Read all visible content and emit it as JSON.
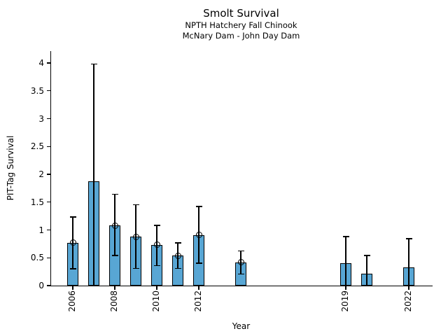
{
  "header": {
    "title": "Smolt Survival",
    "subtitle1": "NPTH Hatchery Fall Chinook",
    "subtitle2": "McNary Dam - John Day Dam"
  },
  "chart_data": {
    "type": "bar",
    "title": "Smolt Survival",
    "subtitles": [
      "NPTH Hatchery Fall Chinook",
      "McNary Dam - John Day Dam"
    ],
    "xlabel": "Year",
    "ylabel": "PIT-Tag Survival",
    "ylim": [
      0,
      4.2
    ],
    "xlim": [
      2004.9,
      2023.2
    ],
    "yticks": [
      0,
      0.5,
      1,
      1.5,
      2,
      2.5,
      3,
      3.5,
      4
    ],
    "xticks_shown": [
      2006,
      2008,
      2010,
      2012,
      2019,
      2022
    ],
    "grid": false,
    "legend": "none",
    "bar_color": "#58a6d4",
    "bar_edge_color": "#000000",
    "error_color": "#000000",
    "marker_style": "open-circle",
    "series": [
      {
        "year": 2006,
        "value": 0.77,
        "ci_low": 0.3,
        "ci_high": 1.23,
        "marker": true,
        "lower_cap": true
      },
      {
        "year": 2007,
        "value": 1.88,
        "ci_low": 0.0,
        "ci_high": 3.98,
        "marker": false,
        "lower_cap": false
      },
      {
        "year": 2008,
        "value": 1.08,
        "ci_low": 0.54,
        "ci_high": 1.64,
        "marker": true,
        "lower_cap": true
      },
      {
        "year": 2009,
        "value": 0.88,
        "ci_low": 0.31,
        "ci_high": 1.45,
        "marker": true,
        "lower_cap": true
      },
      {
        "year": 2010,
        "value": 0.73,
        "ci_low": 0.36,
        "ci_high": 1.08,
        "marker": true,
        "lower_cap": true
      },
      {
        "year": 2011,
        "value": 0.54,
        "ci_low": 0.31,
        "ci_high": 0.77,
        "marker": true,
        "lower_cap": true
      },
      {
        "year": 2012,
        "value": 0.91,
        "ci_low": 0.4,
        "ci_high": 1.42,
        "marker": true,
        "lower_cap": true
      },
      {
        "year": 2014,
        "value": 0.42,
        "ci_low": 0.21,
        "ci_high": 0.62,
        "marker": true,
        "lower_cap": true
      },
      {
        "year": 2019,
        "value": 0.4,
        "ci_low": 0.0,
        "ci_high": 0.88,
        "marker": false,
        "lower_cap": false
      },
      {
        "year": 2020,
        "value": 0.21,
        "ci_low": 0.0,
        "ci_high": 0.54,
        "marker": false,
        "lower_cap": false
      },
      {
        "year": 2022,
        "value": 0.33,
        "ci_low": 0.0,
        "ci_high": 0.84,
        "marker": false,
        "lower_cap": false
      }
    ]
  }
}
